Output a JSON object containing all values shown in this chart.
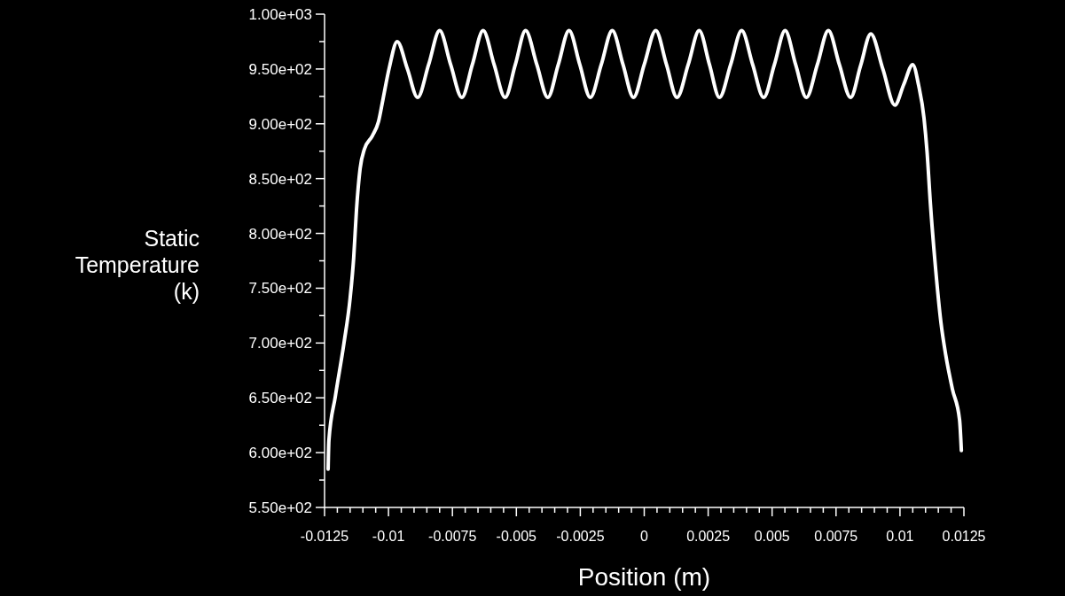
{
  "chart_data": {
    "type": "line",
    "xlabel": "Position (m)",
    "ylabel": "Static\nTemperature\n(k)",
    "marker": "none",
    "line_style": "solid",
    "grid": false,
    "xlim": [
      -0.0125,
      0.0125
    ],
    "ylim": [
      550,
      1000
    ],
    "xticks": [
      -0.0125,
      {
        "value": -0.012,
        "label": null
      },
      {
        "value": -0.0115,
        "label": null
      },
      {
        "value": -0.011,
        "label": null
      },
      {
        "value": -0.0105,
        "label": null
      },
      -0.01,
      {
        "value": -0.0095,
        "label": null
      },
      {
        "value": -0.009,
        "label": null
      },
      {
        "value": -0.0085,
        "label": null
      },
      {
        "value": -0.008,
        "label": null
      },
      -0.0075,
      {
        "value": -0.007,
        "label": null
      },
      {
        "value": -0.0065,
        "label": null
      },
      {
        "value": -0.006,
        "label": null
      },
      {
        "value": -0.0055,
        "label": null
      },
      -0.005,
      {
        "value": -0.0045,
        "label": null
      },
      {
        "value": -0.004,
        "label": null
      },
      {
        "value": -0.0035,
        "label": null
      },
      {
        "value": -0.003,
        "label": null
      },
      -0.0025,
      {
        "value": -0.002,
        "label": null
      },
      {
        "value": -0.0015,
        "label": null
      },
      {
        "value": -0.001,
        "label": null
      },
      {
        "value": -0.0005,
        "label": null
      },
      0,
      {
        "value": 0.0005,
        "label": null
      },
      {
        "value": 0.001,
        "label": null
      },
      {
        "value": 0.0015,
        "label": null
      },
      {
        "value": 0.002,
        "label": null
      },
      0.0025,
      {
        "value": 0.003,
        "label": null
      },
      {
        "value": 0.0035,
        "label": null
      },
      {
        "value": 0.004,
        "label": null
      },
      {
        "value": 0.0045,
        "label": null
      },
      0.005,
      {
        "value": 0.0055,
        "label": null
      },
      {
        "value": 0.006,
        "label": null
      },
      {
        "value": 0.0065,
        "label": null
      },
      {
        "value": 0.007,
        "label": null
      },
      0.0075,
      {
        "value": 0.008,
        "label": null
      },
      {
        "value": 0.0085,
        "label": null
      },
      {
        "value": 0.009,
        "label": null
      },
      {
        "value": 0.0095,
        "label": null
      },
      0.01,
      {
        "value": 0.0105,
        "label": null
      },
      {
        "value": 0.011,
        "label": null
      },
      {
        "value": 0.0115,
        "label": null
      },
      {
        "value": 0.012,
        "label": null
      },
      0.0125
    ],
    "yticks": [
      {
        "value": 550,
        "label": "5.50e+02"
      },
      {
        "value": 575,
        "label": null
      },
      {
        "value": 600,
        "label": "6.00e+02"
      },
      {
        "value": 625,
        "label": null
      },
      {
        "value": 650,
        "label": "6.50e+02"
      },
      {
        "value": 675,
        "label": null
      },
      {
        "value": 700,
        "label": "7.00e+02"
      },
      {
        "value": 725,
        "label": null
      },
      {
        "value": 750,
        "label": "7.50e+02"
      },
      {
        "value": 775,
        "label": null
      },
      {
        "value": 800,
        "label": "8.00e+02"
      },
      {
        "value": 825,
        "label": null
      },
      {
        "value": 850,
        "label": "8.50e+02"
      },
      {
        "value": 875,
        "label": null
      },
      {
        "value": 900,
        "label": "9.00e+02"
      },
      {
        "value": 925,
        "label": null
      },
      {
        "value": 950,
        "label": "9.50e+02"
      },
      {
        "value": 975,
        "label": null
      },
      {
        "value": 1000,
        "label": "1.00e+03"
      }
    ],
    "series": [
      {
        "color": "#ffffff",
        "x": [
          -0.01236,
          -0.01233,
          -0.01208,
          -0.01174,
          -0.0115,
          -0.01136,
          -0.01125,
          -0.01111,
          -0.01094,
          -0.01063,
          -0.01039,
          -0.01021,
          -0.00997,
          -0.00966,
          -0.00926,
          -0.00886,
          -0.00843,
          -0.008,
          -0.00757,
          -0.00713,
          -0.00672,
          -0.0063,
          -0.00587,
          -0.00544,
          -0.00504,
          -0.00464,
          -0.0042,
          -0.00377,
          -0.00336,
          -0.00294,
          -0.00252,
          -0.00211,
          -0.00168,
          -0.00125,
          -0.00083,
          -0.00042,
          0,
          0.00045,
          0.00087,
          0.00128,
          0.00172,
          0.00215,
          0.00255,
          0.00294,
          0.00338,
          0.00381,
          0.00424,
          0.00467,
          0.00509,
          0.00551,
          0.00592,
          0.00634,
          0.00677,
          0.0072,
          0.00763,
          0.00807,
          0.00846,
          0.00886,
          0.00933,
          0.0098,
          0.01015,
          0.0105,
          0.01073,
          0.01094,
          0.01106,
          0.01119,
          0.0114,
          0.0116,
          0.01179,
          0.01205,
          0.01233,
          0.0124
        ],
        "values": [
          585,
          611,
          651,
          700,
          741,
          778,
          822,
          859,
          877,
          889,
          902,
          923,
          951,
          975,
          950,
          924,
          954,
          985,
          954,
          924,
          954,
          985,
          954,
          924,
          954,
          985,
          954,
          924,
          954,
          985,
          954,
          924,
          954,
          985,
          954,
          924,
          954,
          985,
          954,
          924,
          954,
          985,
          954,
          924,
          954,
          985,
          954,
          924,
          954,
          985,
          954,
          924,
          954,
          985,
          954,
          924,
          953,
          982,
          950,
          917,
          936,
          954,
          935,
          905,
          874,
          827,
          766,
          719,
          689,
          658,
          630,
          602
        ]
      }
    ]
  }
}
